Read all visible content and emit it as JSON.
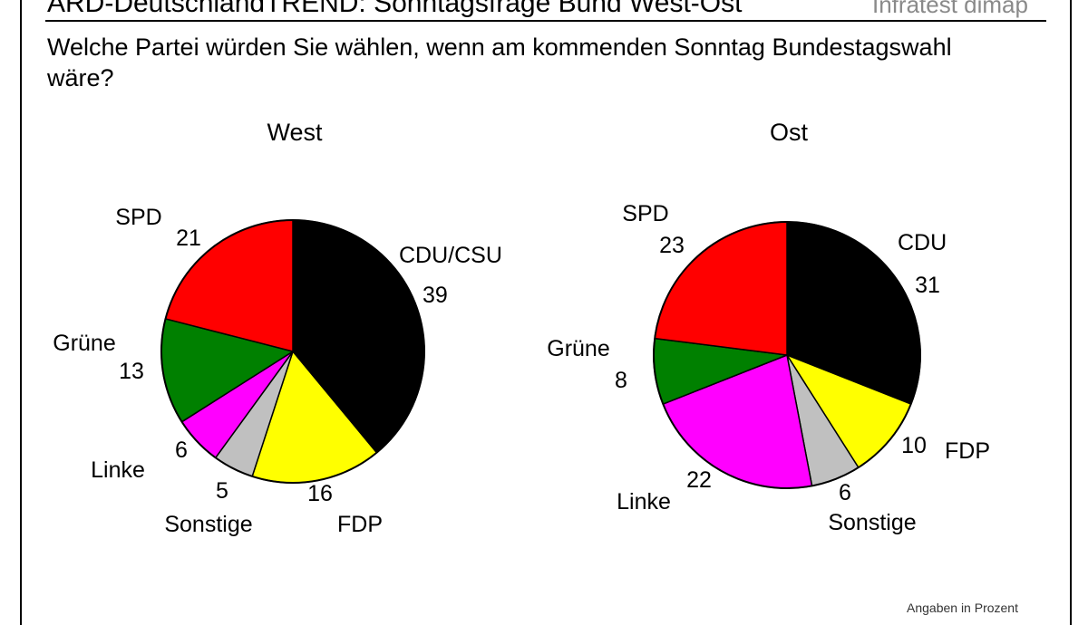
{
  "header": {
    "title": "ARD-DeutschlandTREND: Sonntagsfrage Bund West-Ost",
    "brand": "Infratest dimap"
  },
  "question": "Welche Partei würden Sie wählen, wenn am kommenden Sonntag Bundestagswahl wäre?",
  "credit": "Angaben in Prozent",
  "colors": {
    "CDU": "#000000",
    "FDP": "#ffff00",
    "Sonstige": "#c0c0c0",
    "Linke": "#ff00ff",
    "Grüne": "#008000",
    "SPD": "#ff0000"
  },
  "chart_data": [
    {
      "type": "pie",
      "title": "West",
      "categories": [
        "CDU/CSU",
        "FDP",
        "Sonstige",
        "Linke",
        "Grüne",
        "SPD"
      ],
      "values": [
        39,
        16,
        5,
        6,
        13,
        21
      ],
      "colors": [
        "#000000",
        "#ffff00",
        "#c0c0c0",
        "#ff00ff",
        "#008000",
        "#ff0000"
      ],
      "start": "12 o'clock, clockwise"
    },
    {
      "type": "pie",
      "title": "Ost",
      "categories": [
        "CDU",
        "FDP",
        "Sonstige",
        "Linke",
        "Grüne",
        "SPD"
      ],
      "values": [
        31,
        10,
        6,
        22,
        8,
        23
      ],
      "colors": [
        "#000000",
        "#ffff00",
        "#c0c0c0",
        "#ff00ff",
        "#008000",
        "#ff0000"
      ],
      "start": "12 o'clock, clockwise"
    }
  ]
}
